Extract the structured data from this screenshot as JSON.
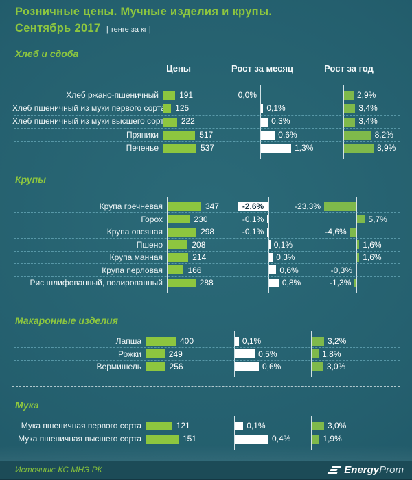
{
  "page": {
    "title_line1": "Розничные цены. Мучные изделия и крупы.",
    "title_line2": "Сентябрь 2017",
    "title_unit": "| тенге за кг |",
    "footer": {
      "source": "Источник: КС МНЭ РК",
      "logo_bold": "Energy",
      "logo_light": "Prom"
    }
  },
  "chart_data": {
    "type": "bar",
    "title": "Розничные цены. Мучные изделия и крупы. Сентябрь 2017",
    "unit": "тенге за кг",
    "columns": [
      "Цены",
      "Рост за месяц",
      "Рост за год"
    ],
    "legend_position": "top",
    "grid": "dashed-row-separators",
    "sections": [
      {
        "title": "Хлеб и сдоба",
        "rows": [
          {
            "label": "Хлеб ржано-пшеничный",
            "price": 191,
            "price_text": "191",
            "month": 0.0,
            "month_text": "0,0%",
            "year": 2.9,
            "year_text": "2,9%"
          },
          {
            "label": "Хлеб пшеничный из муки первого сорта",
            "price": 125,
            "price_text": "125",
            "month": 0.1,
            "month_text": "0,1%",
            "year": 3.4,
            "year_text": "3,4%"
          },
          {
            "label": "Хлеб пшеничный из муки высшего сорта",
            "price": 222,
            "price_text": "222",
            "month": 0.3,
            "month_text": "0,3%",
            "year": 3.4,
            "year_text": "3,4%"
          },
          {
            "label": "Пряники",
            "price": 517,
            "price_text": "517",
            "month": 0.6,
            "month_text": "0,6%",
            "year": 8.2,
            "year_text": "8,2%"
          },
          {
            "label": "Печенье",
            "price": 537,
            "price_text": "537",
            "month": 1.3,
            "month_text": "1,3%",
            "year": 8.9,
            "year_text": "8,9%"
          }
        ]
      },
      {
        "title": "Крупы",
        "rows": [
          {
            "label": "Крупа гречневая",
            "price": 347,
            "price_text": "347",
            "month": -2.6,
            "month_text": "-2,6%",
            "year": -23.3,
            "year_text": "-23,3%"
          },
          {
            "label": "Горох",
            "price": 230,
            "price_text": "230",
            "month": -0.1,
            "month_text": "-0,1%",
            "year": 5.7,
            "year_text": "5,7%"
          },
          {
            "label": "Крупа овсяная",
            "price": 298,
            "price_text": "298",
            "month": -0.1,
            "month_text": "-0,1%",
            "year": -4.6,
            "year_text": "-4,6%"
          },
          {
            "label": "Пшено",
            "price": 208,
            "price_text": "208",
            "month": 0.1,
            "month_text": "0,1%",
            "year": 1.6,
            "year_text": "1,6%"
          },
          {
            "label": "Крупа манная",
            "price": 214,
            "price_text": "214",
            "month": 0.3,
            "month_text": "0,3%",
            "year": 1.6,
            "year_text": "1,6%"
          },
          {
            "label": "Крупа перловая",
            "price": 166,
            "price_text": "166",
            "month": 0.6,
            "month_text": "0,6%",
            "year": -0.3,
            "year_text": "-0,3%"
          },
          {
            "label": "Рис шлифованный, полированный",
            "price": 288,
            "price_text": "288",
            "month": 0.8,
            "month_text": "0,8%",
            "year": -1.3,
            "year_text": "-1,3%"
          }
        ]
      },
      {
        "title": "Макаронные изделия",
        "rows": [
          {
            "label": "Лапша",
            "price": 400,
            "price_text": "400",
            "month": 0.1,
            "month_text": "0,1%",
            "year": 3.2,
            "year_text": "3,2%"
          },
          {
            "label": "Рожки",
            "price": 249,
            "price_text": "249",
            "month": 0.5,
            "month_text": "0,5%",
            "year": 1.8,
            "year_text": "1,8%"
          },
          {
            "label": "Вермишель",
            "price": 256,
            "price_text": "256",
            "month": 0.6,
            "month_text": "0,6%",
            "year": 3.0,
            "year_text": "3,0%"
          }
        ]
      },
      {
        "title": "Мука",
        "rows": [
          {
            "label": "Мука пшеничная первого сорта",
            "price": 121,
            "price_text": "121",
            "month": 0.1,
            "month_text": "0,1%",
            "year": 3.0,
            "year_text": "3,0%"
          },
          {
            "label": "Мука пшеничная высшего сорта",
            "price": 151,
            "price_text": "151",
            "month": 0.4,
            "month_text": "0,4%",
            "year": 1.9,
            "year_text": "1,9%"
          }
        ]
      }
    ]
  }
}
